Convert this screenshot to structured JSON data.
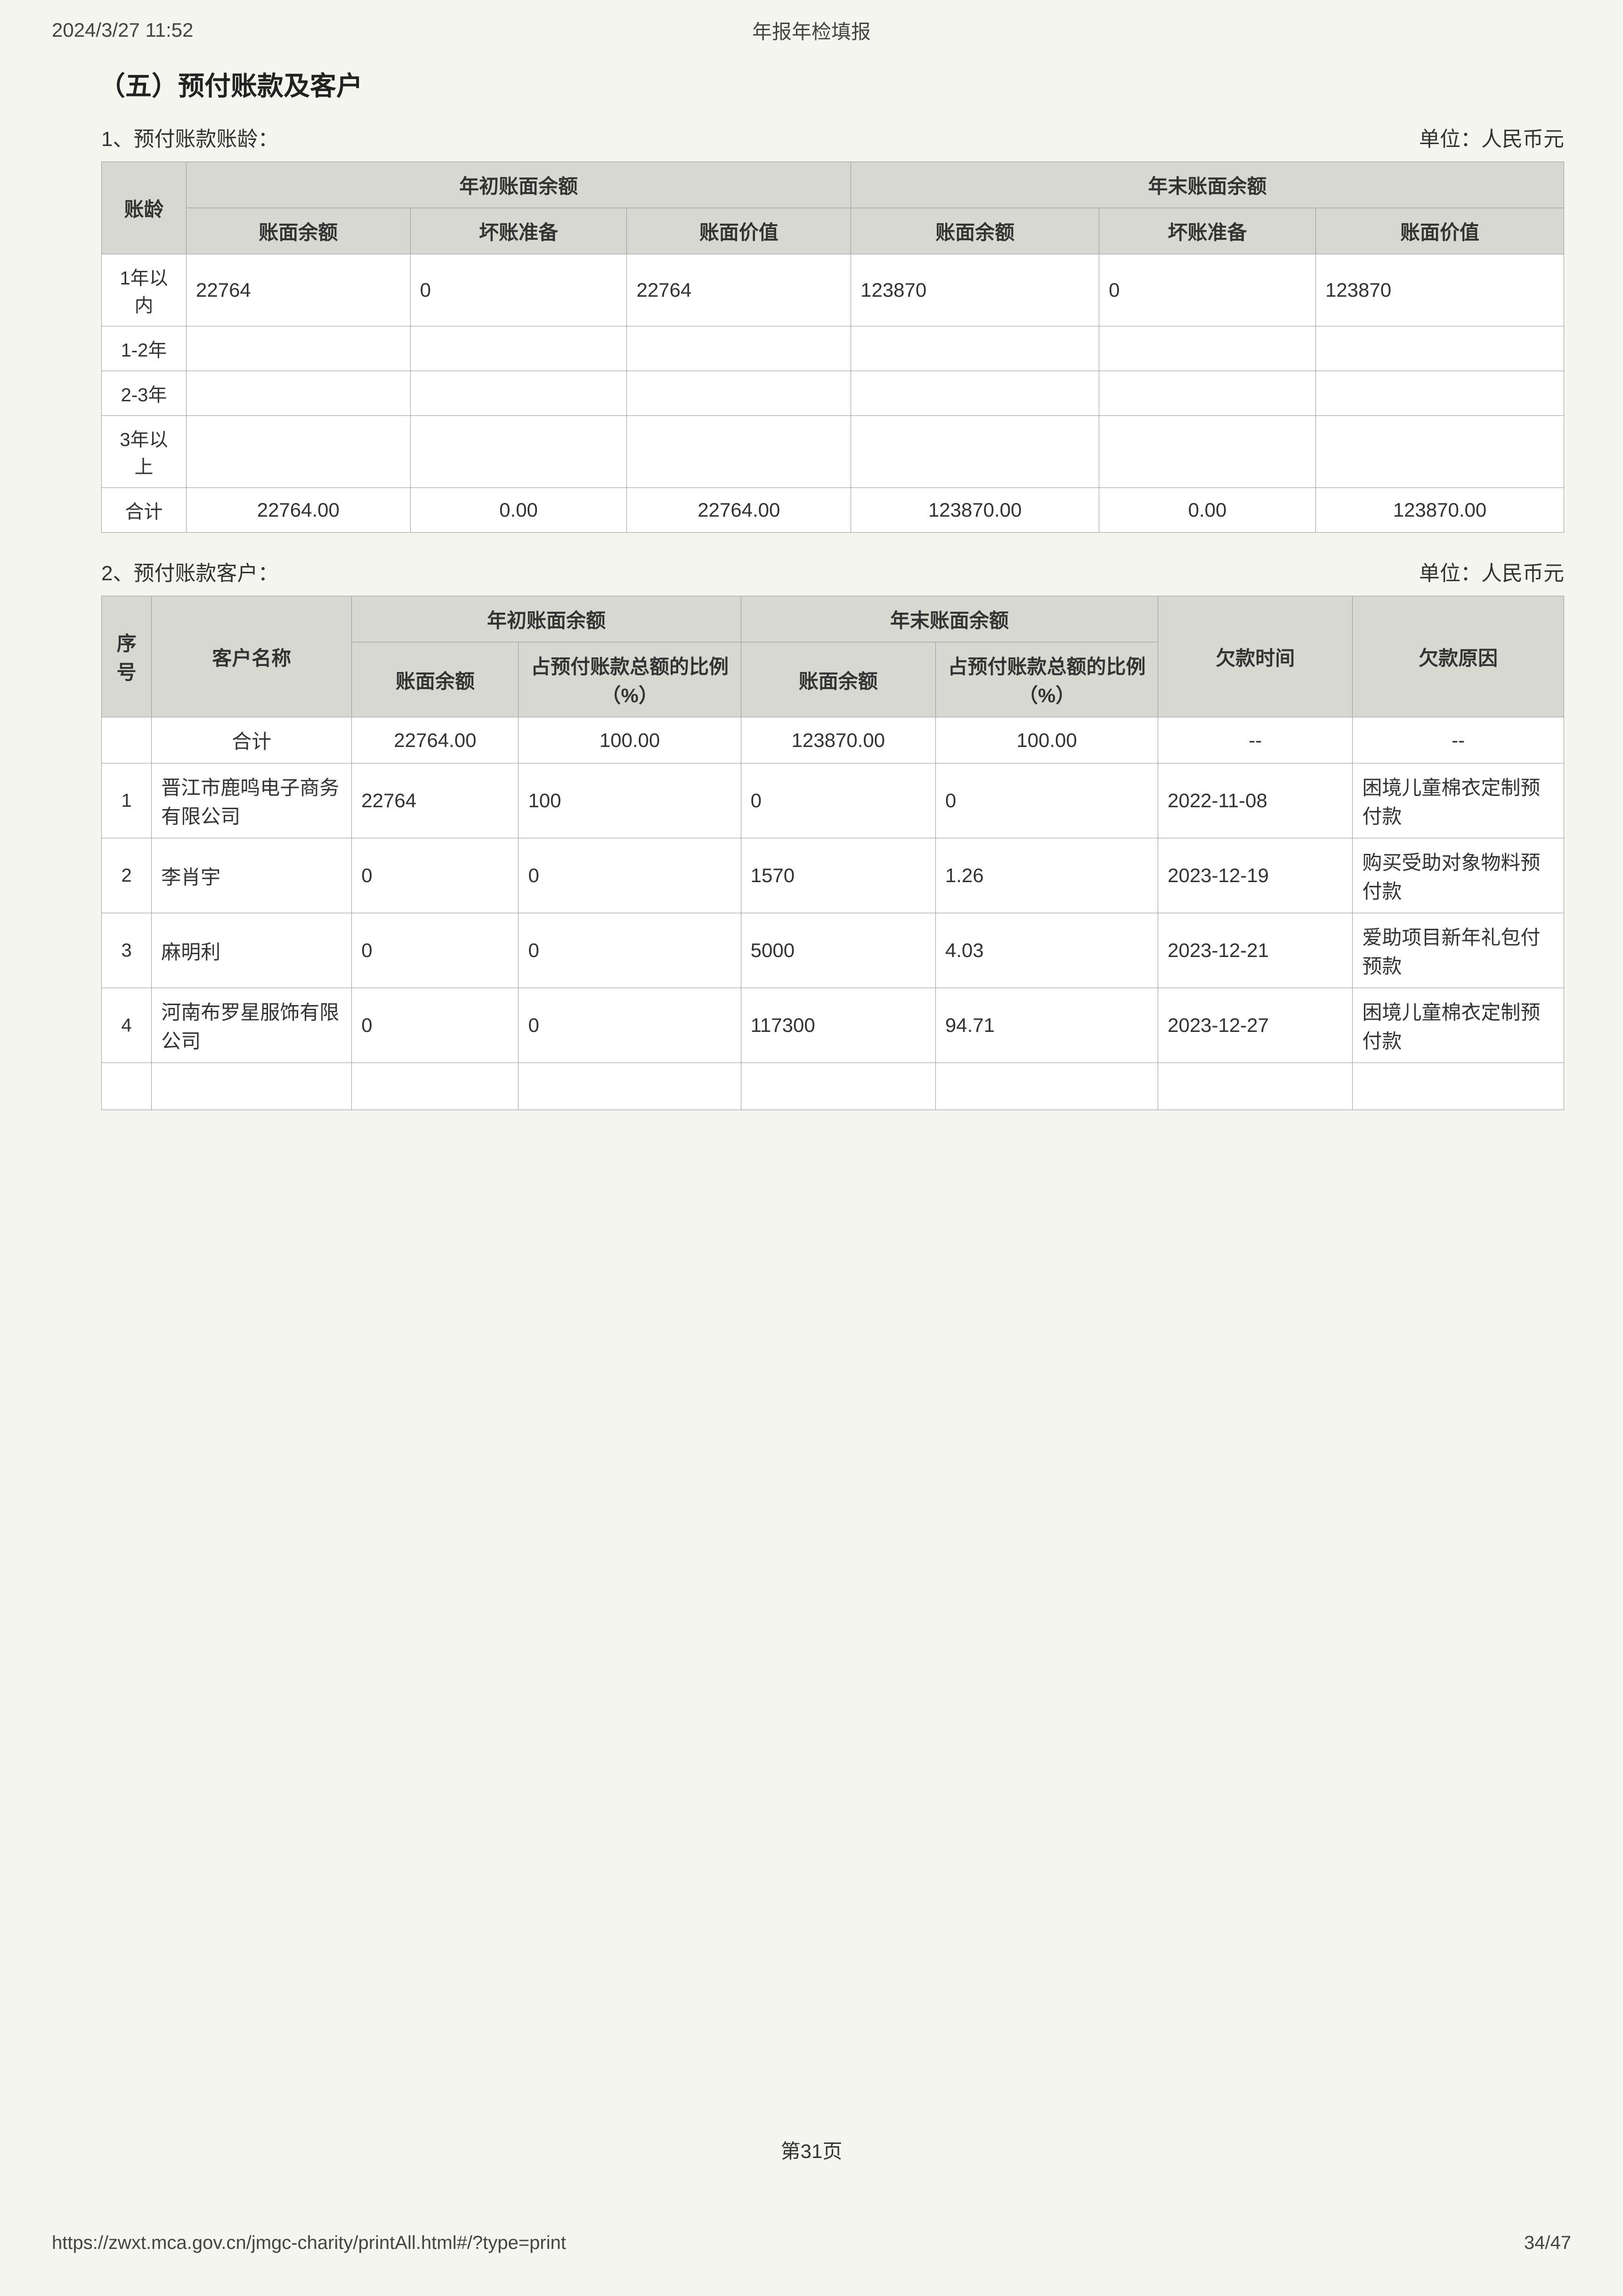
{
  "header": {
    "timestamp": "2024/3/27 11:52",
    "doc_title": "年报年检填报"
  },
  "section": {
    "title": "（五）预付账款及客户"
  },
  "table1": {
    "sub_label": "1、预付账款账龄：",
    "unit": "单位：人民币元",
    "headers": {
      "age": "账龄",
      "begin_group": "年初账面余额",
      "end_group": "年末账面余额",
      "book_balance": "账面余额",
      "bad_debt": "坏账准备",
      "book_value": "账面价值"
    },
    "rows": [
      {
        "label": "1年以内",
        "b_bal": "22764",
        "b_bad": "0",
        "b_val": "22764",
        "e_bal": "123870",
        "e_bad": "0",
        "e_val": "123870"
      },
      {
        "label": "1-2年",
        "b_bal": "",
        "b_bad": "",
        "b_val": "",
        "e_bal": "",
        "e_bad": "",
        "e_val": ""
      },
      {
        "label": "2-3年",
        "b_bal": "",
        "b_bad": "",
        "b_val": "",
        "e_bal": "",
        "e_bad": "",
        "e_val": ""
      },
      {
        "label": "3年以上",
        "b_bal": "",
        "b_bad": "",
        "b_val": "",
        "e_bal": "",
        "e_bad": "",
        "e_val": ""
      }
    ],
    "total": {
      "label": "合计",
      "b_bal": "22764.00",
      "b_bad": "0.00",
      "b_val": "22764.00",
      "e_bal": "123870.00",
      "e_bad": "0.00",
      "e_val": "123870.00"
    }
  },
  "table2": {
    "sub_label": "2、预付账款客户：",
    "unit": "单位：人民币元",
    "headers": {
      "seq": "序号",
      "customer": "客户名称",
      "begin_group": "年初账面余额",
      "end_group": "年末账面余额",
      "book_balance": "账面余额",
      "pct": "占预付账款总额的比例（%）",
      "owe_time": "欠款时间",
      "owe_reason": "欠款原因"
    },
    "total": {
      "label": "合计",
      "b_bal": "22764.00",
      "b_pct": "100.00",
      "e_bal": "123870.00",
      "e_pct": "100.00",
      "owe_time": "--",
      "owe_reason": "--"
    },
    "rows": [
      {
        "seq": "1",
        "name": "晋江市鹿鸣电子商务有限公司",
        "b_bal": "22764",
        "b_pct": "100",
        "e_bal": "0",
        "e_pct": "0",
        "owe_time": "2022-11-08",
        "owe_reason": "困境儿童棉衣定制预付款"
      },
      {
        "seq": "2",
        "name": "李肖宇",
        "b_bal": "0",
        "b_pct": "0",
        "e_bal": "1570",
        "e_pct": "1.26",
        "owe_time": "2023-12-19",
        "owe_reason": "购买受助对象物料预付款"
      },
      {
        "seq": "3",
        "name": "麻明利",
        "b_bal": "0",
        "b_pct": "0",
        "e_bal": "5000",
        "e_pct": "4.03",
        "owe_time": "2023-12-21",
        "owe_reason": "爱助项目新年礼包付预款"
      },
      {
        "seq": "4",
        "name": "河南布罗星服饰有限公司",
        "b_bal": "0",
        "b_pct": "0",
        "e_bal": "117300",
        "e_pct": "94.71",
        "owe_time": "2023-12-27",
        "owe_reason": "困境儿童棉衣定制预付款"
      }
    ]
  },
  "footer": {
    "page_label": "第31页",
    "url": "https://zwxt.mca.gov.cn/jmgc-charity/printAll.html#/?type=print",
    "page_counter": "34/47"
  }
}
